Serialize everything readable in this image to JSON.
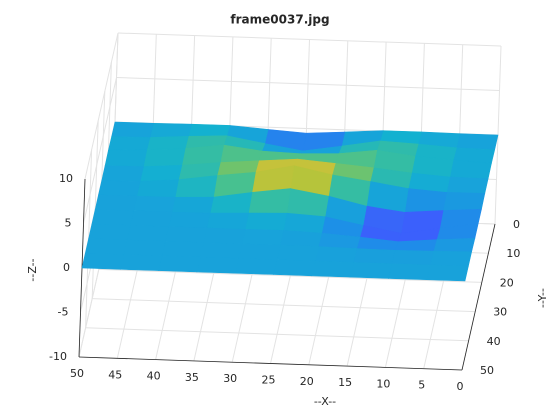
{
  "chart_data": {
    "type": "surface",
    "title": "frame0037.jpg",
    "xlabel": "--X--",
    "ylabel": "--Y--",
    "zlabel": "--Z--",
    "x": [
      0,
      5,
      10,
      15,
      20,
      25,
      30,
      35,
      40,
      45,
      50
    ],
    "y": [
      0,
      5,
      10,
      15,
      20,
      25,
      30,
      35,
      40,
      45,
      50
    ],
    "z": [
      [
        0,
        0,
        0.05,
        0.05,
        -0.25,
        -0.53,
        -0.25,
        0.05,
        0.05,
        0,
        0
      ],
      [
        0,
        0.05,
        0.33,
        0.53,
        -0.2,
        -0.88,
        -0.2,
        0.53,
        0.33,
        0.05,
        0
      ],
      [
        0.1,
        0.33,
        0.6,
        1.13,
        0.6,
        0.45,
        0.6,
        1.13,
        0.6,
        0.33,
        0.1
      ],
      [
        0,
        0.05,
        0.35,
        0.8,
        1.15,
        1.48,
        1.15,
        0.8,
        0.35,
        0.05,
        0
      ],
      [
        0,
        -0.03,
        0.25,
        0.9,
        1.5,
        2.38,
        1.5,
        0.98,
        0.38,
        0.05,
        0
      ],
      [
        -0.13,
        -0.43,
        -0.78,
        -0.23,
        0.75,
        1.45,
        0.88,
        0.2,
        0.03,
        0,
        0
      ],
      [
        -0.13,
        -0.8,
        -1.5,
        -0.75,
        0.08,
        0.33,
        0.2,
        0.05,
        0,
        0,
        0
      ],
      [
        -0.13,
        -0.43,
        -0.8,
        -0.43,
        -0.13,
        0.03,
        0,
        0,
        0,
        0,
        0
      ],
      [
        0,
        -0.08,
        -0.13,
        -0.08,
        0,
        0,
        0,
        0,
        0,
        0,
        0
      ],
      [
        0,
        0,
        0,
        0,
        0,
        0,
        0,
        0,
        0,
        0,
        0
      ],
      [
        0,
        0,
        0,
        0,
        0,
        0,
        0,
        0,
        0,
        0,
        0
      ]
    ],
    "colormap": "parula",
    "xlim": [
      0,
      50
    ],
    "ylim": [
      0,
      50
    ],
    "zlim": [
      -10,
      10
    ],
    "xticks": [
      0,
      5,
      10,
      15,
      20,
      25,
      30,
      35,
      40,
      45,
      50
    ],
    "yticks": [
      0,
      10,
      20,
      30,
      40,
      50
    ],
    "zticks": [
      -10,
      -5,
      0,
      5,
      10
    ],
    "grid": true
  }
}
